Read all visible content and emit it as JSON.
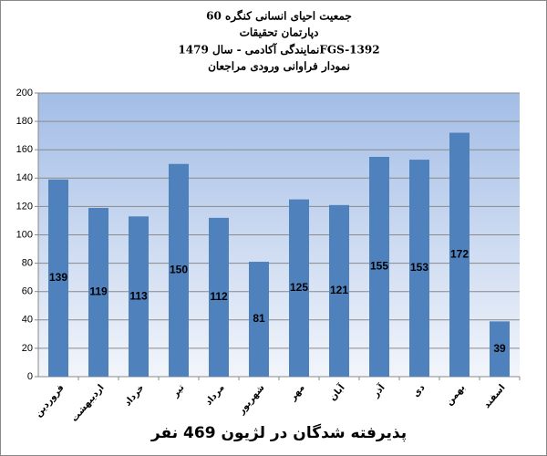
{
  "chart_data": {
    "type": "bar",
    "title": [
      "جمعیت احیای انسانی کنگره 60",
      "دپارتمان تحقیقات",
      "نمایندگی آکادمی - سال 1479FGS-1392",
      "نمودار فراوانی ورودی مراجعان"
    ],
    "x_label": "پذیرفته شدگان در لژیون 469 نفر",
    "categories": [
      "فروردین",
      "اردیبهشت",
      "خرداد",
      "تیر",
      "مرداد",
      "شهریور",
      "مهر",
      "آبان",
      "آذر",
      "دی",
      "بهمن",
      "اسفند"
    ],
    "values": [
      139,
      119,
      113,
      150,
      112,
      81,
      125,
      121,
      155,
      153,
      172,
      39
    ],
    "color": "#4f81bd",
    "ylim": [
      0,
      200
    ],
    "yticks": [
      0,
      20,
      40,
      60,
      80,
      100,
      120,
      140,
      160,
      180,
      200
    ],
    "grid": true
  }
}
